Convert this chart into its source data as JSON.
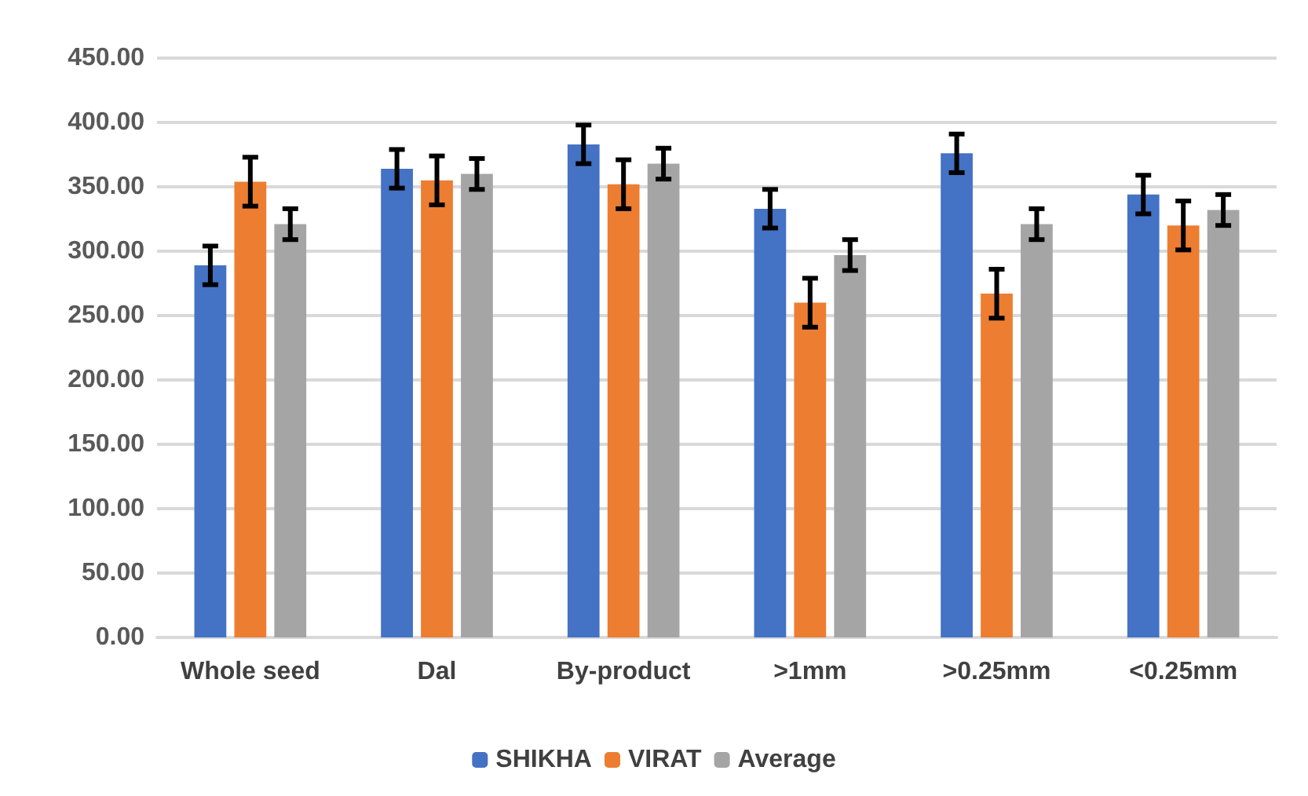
{
  "chart_data": {
    "type": "bar",
    "categories": [
      "Whole seed",
      "Dal",
      "By-product",
      ">1mm",
      ">0.25mm",
      "<0.25mm"
    ],
    "series": [
      {
        "name": "SHIKHA",
        "color": "#4472c4",
        "values": [
          289,
          364,
          383,
          333,
          376,
          344
        ],
        "errors": [
          15,
          15,
          15,
          15,
          15,
          15
        ]
      },
      {
        "name": "VIRAT",
        "color": "#ed7d31",
        "values": [
          354,
          355,
          352,
          260,
          267,
          320
        ],
        "errors": [
          19,
          19,
          19,
          19,
          19,
          19
        ]
      },
      {
        "name": "Average",
        "color": "#a5a5a5",
        "values": [
          321,
          360,
          368,
          297,
          321,
          332
        ],
        "errors": [
          12,
          12,
          12,
          12,
          12,
          12
        ]
      }
    ],
    "ylim": [
      0,
      450
    ],
    "yticks": [
      {
        "value": 0,
        "label": "0.00"
      },
      {
        "value": 50,
        "label": "50.00"
      },
      {
        "value": 100,
        "label": "100.00"
      },
      {
        "value": 150,
        "label": "150.00"
      },
      {
        "value": 200,
        "label": "200.00"
      },
      {
        "value": 250,
        "label": "250.00"
      },
      {
        "value": 300,
        "label": "300.00"
      },
      {
        "value": 350,
        "label": "350.00"
      },
      {
        "value": 400,
        "label": "400.00"
      },
      {
        "value": 450,
        "label": "450.00"
      }
    ],
    "grid": "y",
    "legend": "bottom"
  }
}
